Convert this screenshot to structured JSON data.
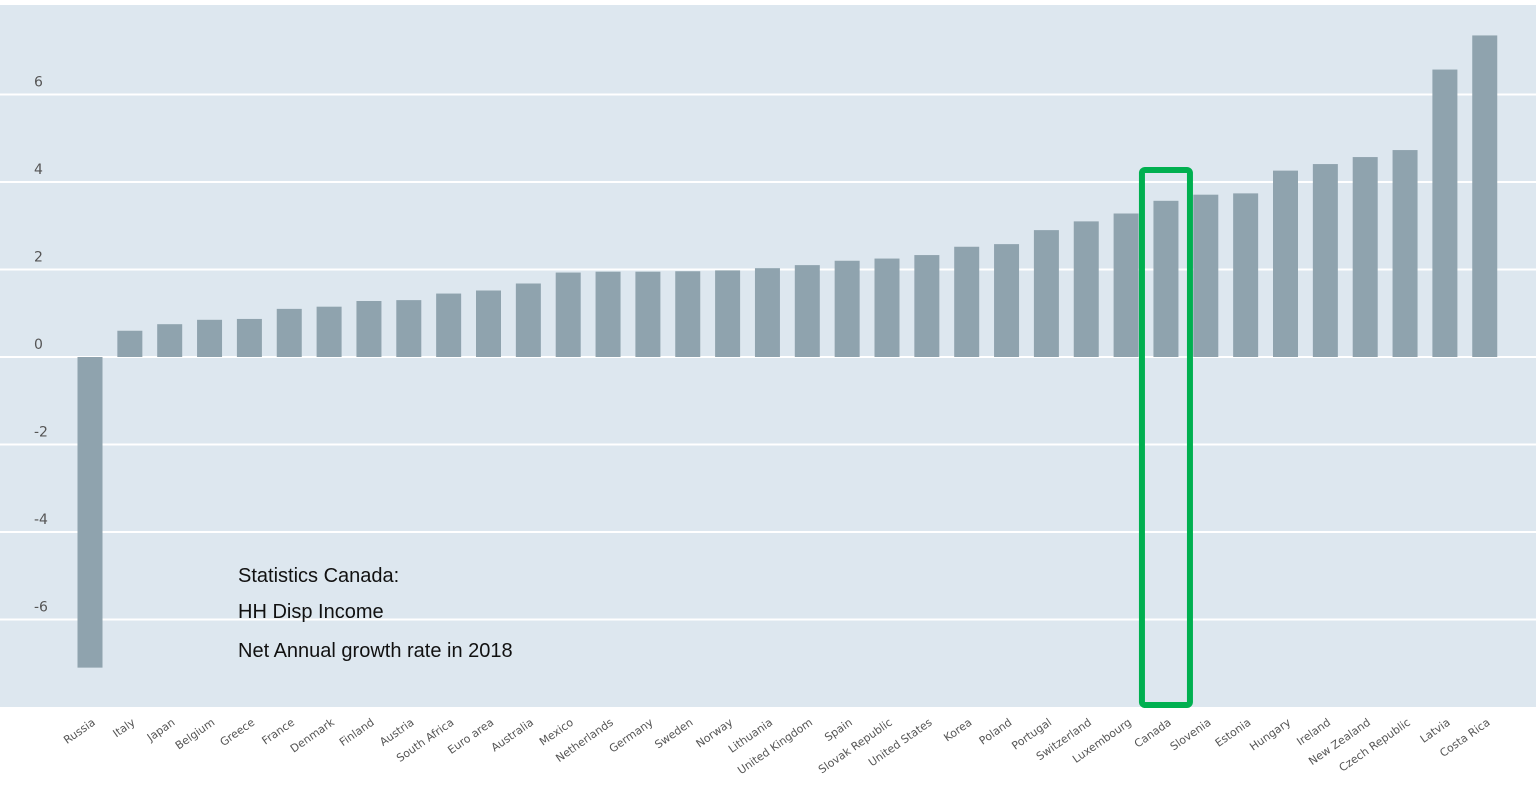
{
  "chart_data": {
    "type": "bar",
    "title": "",
    "xlabel": "",
    "ylabel": "",
    "ylim": [
      -8,
      8
    ],
    "yticks": [
      6,
      4,
      2,
      0,
      -2,
      -4,
      -6
    ],
    "grid": true,
    "categories": [
      "Russia",
      "Italy",
      "Japan",
      "Belgium",
      "Greece",
      "France",
      "Denmark",
      "Finland",
      "Austria",
      "South Africa",
      "Euro area",
      "Australia",
      "Mexico",
      "Netherlands",
      "Germany",
      "Sweden",
      "Norway",
      "Lithuania",
      "United Kingdom",
      "Spain",
      "Slovak Republic",
      "United States",
      "Korea",
      "Poland",
      "Portugal",
      "Switzerland",
      "Luxembourg",
      "Canada",
      "Slovenia",
      "Estonia",
      "Hungary",
      "Ireland",
      "New Zealand",
      "Czech Republic",
      "Latvia",
      "Costa Rica"
    ],
    "values": [
      -7.1,
      0.6,
      0.75,
      0.85,
      0.87,
      1.1,
      1.15,
      1.28,
      1.3,
      1.45,
      1.52,
      1.68,
      1.93,
      1.95,
      1.95,
      1.96,
      1.98,
      2.03,
      2.1,
      2.2,
      2.25,
      2.33,
      2.52,
      2.58,
      2.9,
      3.1,
      3.28,
      3.57,
      3.71,
      3.74,
      4.26,
      4.41,
      4.57,
      4.73,
      6.57,
      7.35
    ],
    "highlight_category": "Canada",
    "annotation": [
      "Statistics Canada:",
      "HH Disp Income",
      "Net Annual growth rate in 2018"
    ],
    "colors": {
      "plot_background": "#dde7ef",
      "bar": "#8fa3ae",
      "gridline": "#ffffff",
      "highlight_box": "#00b050"
    }
  }
}
